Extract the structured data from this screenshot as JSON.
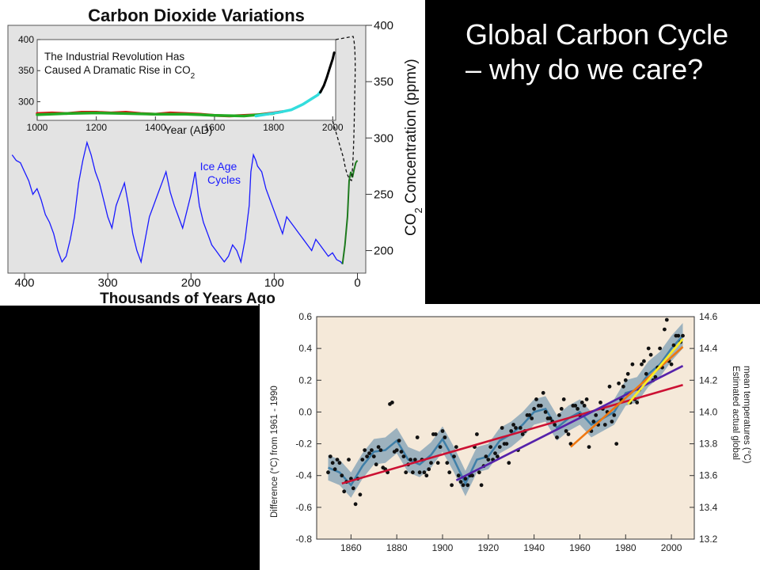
{
  "slide": {
    "title": "Global Carbon Cycle – why do we care?"
  },
  "chart_data": [
    {
      "type": "line",
      "title": "Carbon Dioxide Variations",
      "xlabel": "Thousands of Years Ago",
      "ylabel": "CO2 Concentration (ppmv)",
      "xlim": [
        420,
        -10
      ],
      "ylim": [
        180,
        400
      ],
      "x_ticks": [
        400,
        300,
        200,
        100,
        0
      ],
      "y_ticks": [
        200,
        250,
        300,
        350,
        400
      ],
      "annotations": [
        {
          "text": "Ice Age Cycles",
          "color": "#1a1aff"
        }
      ],
      "series": [
        {
          "color": "#1a1aff",
          "x": [
            415,
            410,
            405,
            400,
            395,
            390,
            385,
            380,
            375,
            370,
            365,
            360,
            355,
            350,
            345,
            340,
            335,
            330,
            325,
            320,
            315,
            310,
            305,
            300,
            295,
            290,
            285,
            280,
            275,
            270,
            265,
            260,
            255,
            250,
            245,
            240,
            235,
            230,
            225,
            220,
            215,
            210,
            205,
            200,
            195,
            190,
            185,
            180,
            175,
            170,
            165,
            160,
            155,
            150,
            145,
            140,
            135,
            130,
            128,
            125,
            122,
            120,
            115,
            110,
            105,
            100,
            95,
            90,
            85,
            80,
            75,
            70,
            65,
            60,
            55,
            50,
            45,
            40,
            35,
            30,
            25,
            20,
            18
          ],
          "y": [
            285,
            280,
            278,
            270,
            262,
            250,
            255,
            245,
            232,
            225,
            215,
            200,
            190,
            195,
            210,
            230,
            260,
            280,
            296,
            285,
            270,
            260,
            245,
            230,
            220,
            240,
            250,
            260,
            240,
            215,
            200,
            190,
            210,
            230,
            240,
            250,
            260,
            270,
            252,
            240,
            230,
            220,
            235,
            250,
            270,
            240,
            225,
            215,
            205,
            200,
            195,
            190,
            195,
            205,
            200,
            190,
            210,
            240,
            270,
            285,
            280,
            275,
            270,
            255,
            245,
            235,
            225,
            215,
            230,
            225,
            220,
            215,
            210,
            205,
            200,
            210,
            205,
            200,
            195,
            198,
            192,
            190,
            188
          ]
        },
        {
          "color": "#1e7a1e",
          "x": [
            18,
            15,
            12,
            10,
            8,
            6,
            4,
            2,
            0
          ],
          "y": [
            188,
            205,
            230,
            262,
            270,
            265,
            272,
            278,
            280
          ]
        }
      ],
      "inset": {
        "type": "line",
        "title": "The Industrial Revolution Has Caused A Dramatic Rise in CO",
        "title_sub": "2",
        "xlabel": "Year (AD)",
        "xlim": [
          1000,
          2010
        ],
        "ylim": [
          270,
          400
        ],
        "x_ticks": [
          1000,
          1200,
          1400,
          1600,
          1800,
          2000
        ],
        "y_ticks": [
          300,
          350,
          400
        ],
        "series": [
          {
            "color": "#dd1111",
            "x": [
              1000,
              1050,
              1100,
              1150,
              1200,
              1250,
              1300,
              1350,
              1400,
              1450,
              1500,
              1550,
              1600,
              1650,
              1700,
              1750,
              1800,
              1830
            ],
            "y": [
              281,
              282,
              281,
              283,
              283,
              282,
              283,
              281,
              280,
              282,
              281,
              280,
              278,
              277,
              278,
              279,
              282,
              284
            ]
          },
          {
            "color": "#22aa22",
            "x": [
              1000,
              1100,
              1200,
              1300,
              1400,
              1500,
              1600,
              1700,
              1800
            ],
            "y": [
              279,
              281,
              282,
              281,
              280,
              280,
              278,
              277,
              281
            ]
          },
          {
            "color": "#33dddd",
            "x": [
              1740,
              1780,
              1820,
              1860,
              1900,
              1930,
              1950,
              1960
            ],
            "y": [
              277,
              280,
              283,
              287,
              296,
              305,
              311,
              317
            ]
          },
          {
            "color": "#000000",
            "x": [
              1958,
              1970,
              1980,
              1990,
              2000,
              2005
            ],
            "y": [
              315,
              326,
              339,
              354,
              369,
              379
            ]
          }
        ]
      }
    },
    {
      "type": "line",
      "ylabel": "Difference (°C) from 1961 - 1990",
      "ylabel2": "Estimated actual global mean temperatures (°C)",
      "xlim": [
        1845,
        2010
      ],
      "ylim": [
        -0.8,
        0.6
      ],
      "ylim2": [
        13.2,
        14.6
      ],
      "x_ticks": [
        1860,
        1880,
        1900,
        1920,
        1940,
        1960,
        1980,
        2000
      ],
      "y_ticks": [
        -0.8,
        -0.6,
        -0.4,
        -0.2,
        0.0,
        0.2,
        0.4,
        0.6
      ],
      "y_tick_labels": [
        "-0.8",
        "-0.6",
        "-0.4",
        "-0.2",
        "0.0",
        "0.2",
        "0.4",
        "0.6"
      ],
      "y_ticks2": [
        13.2,
        13.4,
        13.6,
        13.8,
        14.0,
        14.2,
        14.4,
        14.6
      ],
      "y_tick_labels2": [
        "13.2",
        "13.4",
        "13.6",
        "13.8",
        "14.0",
        "14.2",
        "14.4",
        "14.6"
      ],
      "scatter": {
        "color": "#111111",
        "x": [
          1850,
          1851,
          1852,
          1853,
          1854,
          1855,
          1856,
          1857,
          1858,
          1859,
          1860,
          1861,
          1862,
          1863,
          1864,
          1865,
          1866,
          1867,
          1868,
          1869,
          1870,
          1871,
          1872,
          1873,
          1874,
          1875,
          1876,
          1877,
          1878,
          1879,
          1880,
          1881,
          1882,
          1883,
          1884,
          1885,
          1886,
          1887,
          1888,
          1889,
          1890,
          1891,
          1892,
          1893,
          1894,
          1895,
          1896,
          1897,
          1898,
          1899,
          1900,
          1901,
          1902,
          1903,
          1904,
          1905,
          1906,
          1907,
          1908,
          1909,
          1910,
          1911,
          1912,
          1913,
          1914,
          1915,
          1916,
          1917,
          1918,
          1919,
          1920,
          1921,
          1922,
          1923,
          1924,
          1925,
          1926,
          1927,
          1928,
          1929,
          1930,
          1931,
          1932,
          1933,
          1934,
          1935,
          1936,
          1937,
          1938,
          1939,
          1940,
          1941,
          1942,
          1943,
          1944,
          1945,
          1946,
          1947,
          1948,
          1949,
          1950,
          1951,
          1952,
          1953,
          1954,
          1955,
          1956,
          1957,
          1958,
          1959,
          1960,
          1961,
          1962,
          1963,
          1964,
          1965,
          1966,
          1967,
          1968,
          1969,
          1970,
          1971,
          1972,
          1973,
          1974,
          1975,
          1976,
          1977,
          1978,
          1979,
          1980,
          1981,
          1982,
          1983,
          1984,
          1985,
          1986,
          1987,
          1988,
          1989,
          1990,
          1991,
          1992,
          1993,
          1994,
          1995,
          1996,
          1997,
          1998,
          1999,
          2000,
          2001,
          2002,
          2003,
          2004,
          2005
        ],
        "y": [
          -0.38,
          -0.28,
          -0.32,
          -0.36,
          -0.3,
          -0.32,
          -0.4,
          -0.5,
          -0.44,
          -0.3,
          -0.42,
          -0.48,
          -0.58,
          -0.42,
          -0.52,
          -0.3,
          -0.24,
          -0.28,
          -0.26,
          -0.24,
          -0.28,
          -0.33,
          -0.22,
          -0.24,
          -0.35,
          -0.36,
          -0.38,
          0.05,
          0.06,
          -0.25,
          -0.24,
          -0.18,
          -0.25,
          -0.28,
          -0.38,
          -0.33,
          -0.3,
          -0.38,
          -0.3,
          -0.16,
          -0.38,
          -0.3,
          -0.38,
          -0.4,
          -0.36,
          -0.32,
          -0.14,
          -0.14,
          -0.32,
          -0.22,
          -0.12,
          -0.16,
          -0.32,
          -0.38,
          -0.46,
          -0.28,
          -0.22,
          -0.4,
          -0.44,
          -0.46,
          -0.42,
          -0.46,
          -0.4,
          -0.4,
          -0.22,
          -0.14,
          -0.38,
          -0.46,
          -0.34,
          -0.28,
          -0.3,
          -0.22,
          -0.3,
          -0.26,
          -0.28,
          -0.22,
          -0.1,
          -0.2,
          -0.2,
          -0.32,
          -0.12,
          -0.08,
          -0.1,
          -0.24,
          -0.1,
          -0.14,
          -0.12,
          -0.02,
          -0.02,
          -0.04,
          0.02,
          0.08,
          0.04,
          0.04,
          0.12,
          0.0,
          -0.04,
          -0.04,
          -0.06,
          -0.08,
          -0.16,
          -0.02,
          0.02,
          0.08,
          -0.12,
          -0.14,
          -0.2,
          0.04,
          0.04,
          0.02,
          -0.02,
          0.06,
          0.04,
          0.08,
          -0.22,
          -0.12,
          -0.06,
          -0.02,
          -0.08,
          0.06,
          0.02,
          -0.08,
          0.0,
          0.16,
          -0.06,
          -0.02,
          -0.2,
          0.18,
          0.08,
          0.16,
          0.2,
          0.24,
          0.06,
          0.3,
          0.08,
          0.06,
          0.14,
          0.3,
          0.32,
          0.24,
          0.4,
          0.36,
          0.2,
          0.22,
          0.28,
          0.4,
          0.28,
          0.52,
          0.58,
          0.32,
          0.3,
          0.42,
          0.48,
          0.48,
          0.44,
          0.48
        ]
      },
      "smooth": {
        "color": "#3f7fa8",
        "band_color": "#7f9fb4",
        "x": [
          1850,
          1855,
          1860,
          1865,
          1870,
          1875,
          1880,
          1885,
          1890,
          1895,
          1900,
          1905,
          1910,
          1915,
          1920,
          1925,
          1930,
          1935,
          1940,
          1945,
          1950,
          1955,
          1960,
          1965,
          1970,
          1975,
          1980,
          1985,
          1990,
          1995,
          2000,
          2005
        ],
        "y": [
          -0.35,
          -0.38,
          -0.46,
          -0.34,
          -0.25,
          -0.24,
          -0.18,
          -0.3,
          -0.33,
          -0.27,
          -0.17,
          -0.3,
          -0.45,
          -0.3,
          -0.28,
          -0.18,
          -0.14,
          -0.08,
          0.0,
          0.02,
          -0.1,
          -0.04,
          0.0,
          -0.08,
          -0.04,
          0.0,
          0.12,
          0.14,
          0.24,
          0.3,
          0.4,
          0.48
        ]
      },
      "trends": [
        {
          "color": "#cc1133",
          "x": [
            1856,
            2005
          ],
          "y": [
            -0.45,
            0.17
          ]
        },
        {
          "color": "#5522aa",
          "x": [
            1906,
            2005
          ],
          "y": [
            -0.43,
            0.29
          ]
        },
        {
          "color": "#ee7711",
          "x": [
            1956,
            2005
          ],
          "y": [
            -0.22,
            0.41
          ]
        },
        {
          "color": "#ffee22",
          "x": [
            1981,
            2005
          ],
          "y": [
            0.05,
            0.46
          ]
        }
      ]
    }
  ]
}
